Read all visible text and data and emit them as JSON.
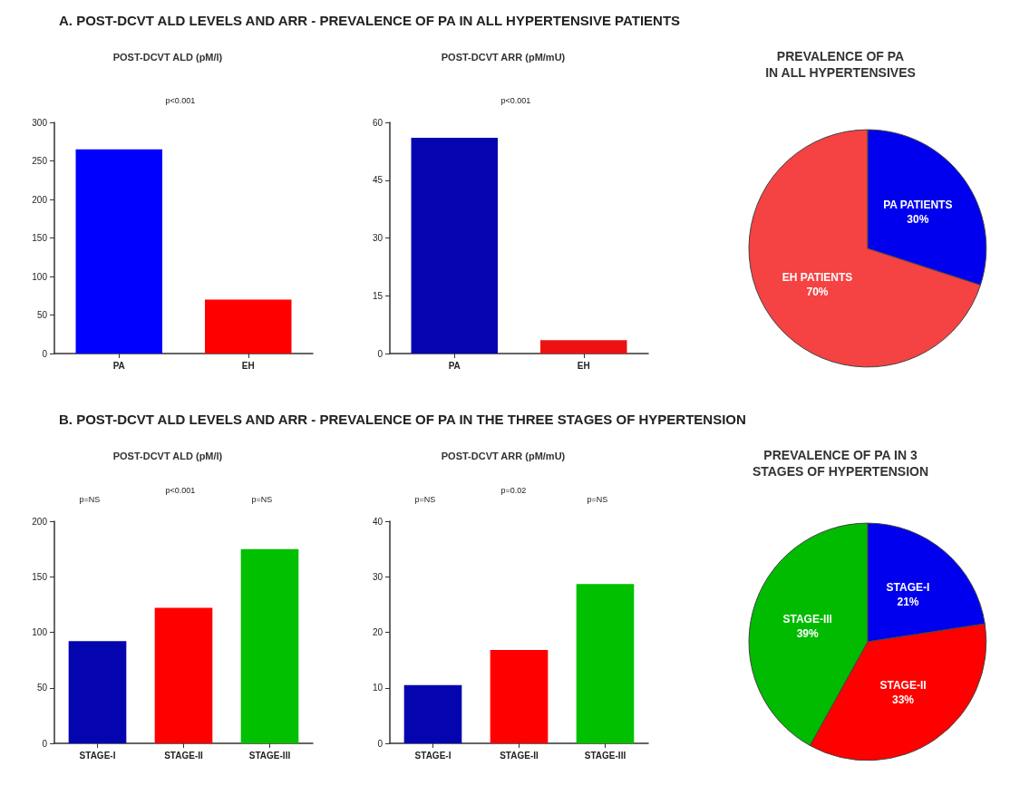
{
  "chart_data": [
    {
      "type": "other",
      "title": "A. POST-DCVT ALD LEVELS AND ARR - PREVALENCE OF PA IN ALL HYPERTENSIVE PATIENTS"
    },
    {
      "type": "bar",
      "title": "POST-DCVT ALD (pM/l)",
      "categories": [
        "PA",
        "EH"
      ],
      "values": [
        265,
        70
      ],
      "colors": [
        "#0000ff",
        "#ff0000"
      ],
      "ylim": [
        0,
        300
      ],
      "yticks": [
        0,
        50,
        100,
        150,
        200,
        250,
        300
      ],
      "grid": false,
      "annotations": [
        "p<0.001"
      ]
    },
    {
      "type": "bar",
      "title": "POST-DCVT ARR (pM/mU)",
      "categories": [
        "PA",
        "EH"
      ],
      "values": [
        56,
        3.5
      ],
      "colors": [
        "#0505b0",
        "#ee1111"
      ],
      "ylim": [
        0,
        60
      ],
      "yticks": [
        0,
        15,
        30,
        45,
        60
      ],
      "grid": false,
      "annotations": [
        "p<0.001"
      ]
    },
    {
      "type": "pie",
      "title": "PREVALENCE OF PA\nIN ALL HYPERTENSIVES",
      "categories": [
        "PA PATIENTS",
        "EH PATIENTS"
      ],
      "values": [
        30,
        70
      ],
      "value_labels": [
        "30%",
        "70%"
      ],
      "colors": [
        "#0000ee",
        "#f54242"
      ]
    },
    {
      "type": "other",
      "title": "B. POST-DCVT ALD LEVELS AND ARR - PREVALENCE OF PA IN THE THREE STAGES OF HYPERTENSION"
    },
    {
      "type": "bar",
      "title": "POST-DCVT ALD (pM/l)",
      "categories": [
        "STAGE-I",
        "STAGE-II",
        "STAGE-III"
      ],
      "values": [
        92,
        122,
        175
      ],
      "colors": [
        "#0505b0",
        "#ff0000",
        "#00c000"
      ],
      "ylim": [
        0,
        200
      ],
      "yticks": [
        0,
        50,
        100,
        150,
        200
      ],
      "grid": false,
      "annotations": [
        "p=NS",
        "p<0.001",
        "p=NS"
      ]
    },
    {
      "type": "bar",
      "title": "POST-DCVT ARR (pM/mU)",
      "categories": [
        "STAGE-I",
        "STAGE-II",
        "STAGE-III"
      ],
      "values": [
        10.5,
        16.8,
        28.7
      ],
      "colors": [
        "#0505b0",
        "#ff0000",
        "#00c000"
      ],
      "ylim": [
        0,
        40
      ],
      "yticks": [
        0,
        10,
        20,
        30,
        40
      ],
      "grid": false,
      "annotations": [
        "p=NS",
        "p=0.02",
        "p=NS"
      ]
    },
    {
      "type": "pie",
      "title": "PREVALENCE OF PA IN 3\nSTAGES OF HYPERTENSION",
      "categories": [
        "STAGE-I",
        "STAGE-II",
        "STAGE-III"
      ],
      "values": [
        21,
        33,
        39
      ],
      "value_labels": [
        "21%",
        "33%",
        "39%"
      ],
      "colors": [
        "#0000ee",
        "#ff0000",
        "#00bb00"
      ]
    }
  ]
}
